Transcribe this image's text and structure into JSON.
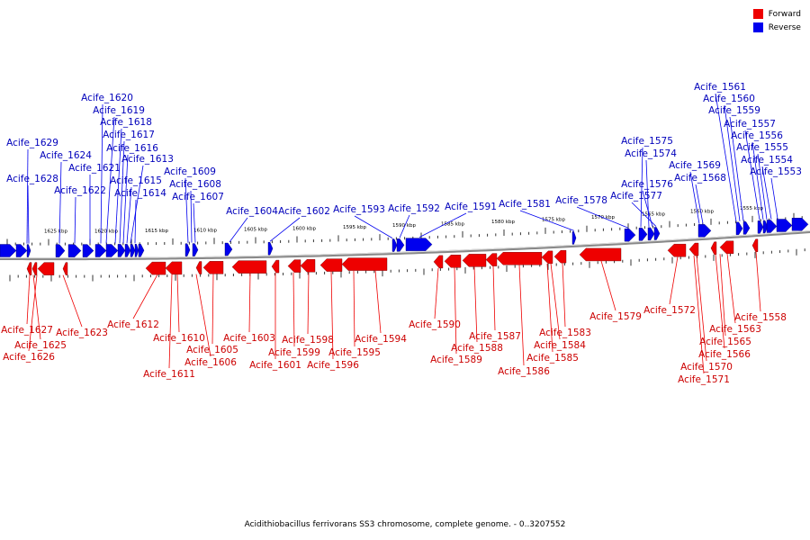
{
  "legend": [
    {
      "label": "Forward",
      "color": "#ee0000"
    },
    {
      "label": "Reverse",
      "color": "#0000ee"
    }
  ],
  "caption": "Acidithiobacillus ferrivorans SS3 chromosome, complete genome. - 0..3207552",
  "colors": {
    "forward": "#ee0000",
    "reverse": "#0000ee",
    "backbone": "#888888",
    "forward_text": "#cc0000",
    "reverse_text": "#0000bb"
  },
  "scale_labels": [
    "1625 kbp",
    "1620 kbp",
    "1615 kbp",
    "1610 kbp",
    "1605 kbp",
    "1600 kbp",
    "1595 kbp",
    "1590 kbp",
    "1585 kbp",
    "1580 kbp",
    "1575 kbp",
    "1570 kbp",
    "1565 kbp",
    "1560 kbp",
    "1555 kbp"
  ],
  "reverse_genes": [
    "Acife_1629",
    "Acife_1628",
    "Acife_1624",
    "Acife_1622",
    "Acife_1621",
    "Acife_1620",
    "Acife_1619",
    "Acife_1618",
    "Acife_1617",
    "Acife_1616",
    "Acife_1615",
    "Acife_1613",
    "Acife_1614",
    "Acife_1609",
    "Acife_1608",
    "Acife_1607",
    "Acife_1604",
    "Acife_1602",
    "Acife_1593",
    "Acife_1592",
    "Acife_1591",
    "Acife_1581",
    "Acife_1578",
    "Acife_1575",
    "Acife_1574",
    "Acife_1576",
    "Acife_1577",
    "Acife_1569",
    "Acife_1568",
    "Acife_1561",
    "Acife_1560",
    "Acife_1559",
    "Acife_1557",
    "Acife_1556",
    "Acife_1555",
    "Acife_1554",
    "Acife_1553"
  ],
  "forward_genes": [
    "Acife_1627",
    "Acife_1625",
    "Acife_1626",
    "Acife_1623",
    "Acife_1612",
    "Acife_1611",
    "Acife_1610",
    "Acife_1606",
    "Acife_1605",
    "Acife_1603",
    "Acife_1601",
    "Acife_1599",
    "Acife_1598",
    "Acife_1596",
    "Acife_1595",
    "Acife_1594",
    "Acife_1590",
    "Acife_1589",
    "Acife_1588",
    "Acife_1587",
    "Acife_1586",
    "Acife_1585",
    "Acife_1584",
    "Acife_1583",
    "Acife_1579",
    "Acife_1572",
    "Acife_1571",
    "Acife_1570",
    "Acife_1566",
    "Acife_1565",
    "Acife_1563",
    "Acife_1558"
  ]
}
